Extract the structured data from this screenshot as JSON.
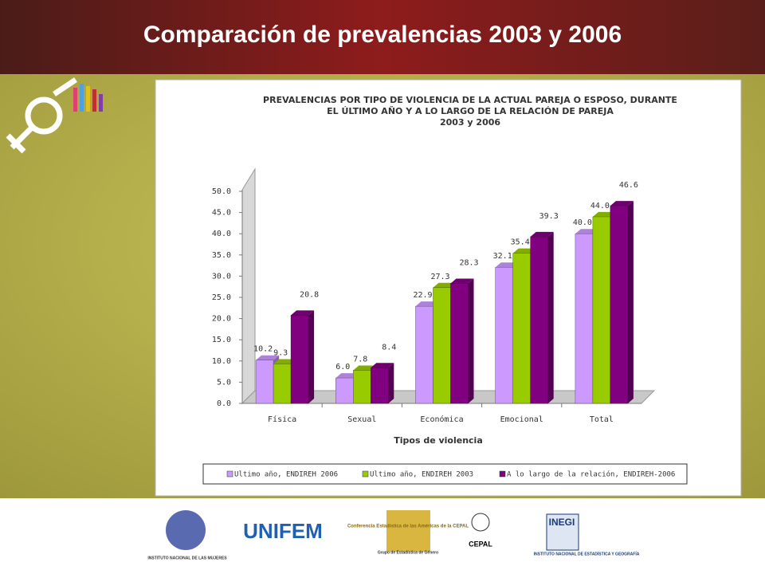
{
  "slide": {
    "title": "Comparación de prevalencias 2003 y 2006"
  },
  "logos": [
    "INSTITUTO NACIONAL DE LAS MUJERES",
    "UNIFEM",
    "Conferencia Estadística de las Américas de la CEPAL",
    "Grupo de Estadística de Género",
    "CEPAL",
    "INEGI",
    "INSTITUTO NACIONAL DE ESTADÍSTICA Y GEOGRAFÍA"
  ],
  "chart_data": {
    "type": "bar3d",
    "title": [
      "PREVALENCIAS POR TIPO DE VIOLENCIA DE LA ACTUAL PAREJA O ESPOSO, DURANTE",
      "EL ÚLTIMO AÑO Y A LO LARGO DE LA RELACIÓN DE PAREJA",
      "2003 y 2006"
    ],
    "x_label": "Tipos de violencia",
    "categories": [
      "Física",
      "Sexual",
      "Económica",
      "Emocional",
      "Total"
    ],
    "series": [
      {
        "name": "Ultimo año, ENDIREH 2006",
        "color": "#cc99ff",
        "values": [
          10.2,
          6.0,
          22.9,
          32.1,
          40.0
        ],
        "value_labels": [
          "10.2",
          "6.0",
          "22.9",
          "32.1",
          "40.0"
        ]
      },
      {
        "name": "Ultimo año, ENDIREH 2003",
        "color": "#99cc00",
        "values": [
          9.3,
          7.8,
          27.3,
          35.4,
          44.0
        ],
        "value_labels": [
          "9.3",
          "7.8",
          "27.3",
          "35.4",
          "44.0"
        ]
      },
      {
        "name": "A lo largo de la relación, ENDIREH-2006",
        "color": "#800080",
        "values": [
          20.8,
          8.4,
          28.3,
          39.3,
          46.6
        ],
        "value_labels": [
          "20.8",
          "8.4",
          "28.3",
          "39.3",
          "46.6"
        ]
      }
    ],
    "ylim": [
      0,
      50
    ],
    "yticks": [
      {
        "value": 0,
        "label": "0.0"
      },
      {
        "value": 5,
        "label": "5.0"
      },
      {
        "value": 10,
        "label": "10.0"
      },
      {
        "value": 15,
        "label": "15.0"
      },
      {
        "value": 20,
        "label": "20.0"
      },
      {
        "value": 25,
        "label": "25.0"
      },
      {
        "value": 30,
        "label": "30.0"
      },
      {
        "value": 35,
        "label": "35.0"
      },
      {
        "value": 40,
        "label": "40.0"
      },
      {
        "value": 45,
        "label": "45.0"
      },
      {
        "value": 50,
        "label": "50.0"
      }
    ],
    "legend": "bottom"
  }
}
